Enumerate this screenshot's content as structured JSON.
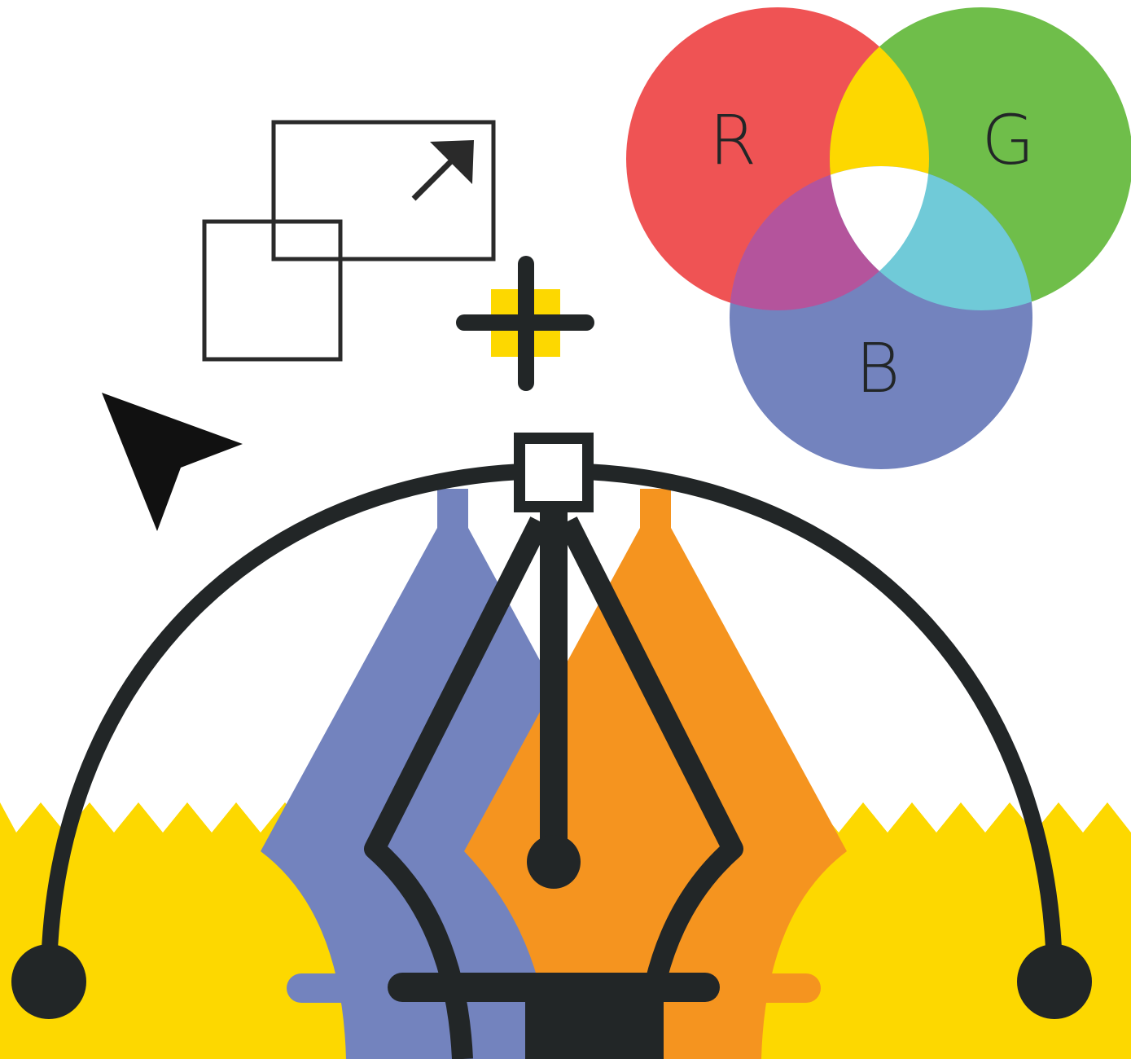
{
  "rgb_labels": [
    "R",
    "G",
    "B"
  ]
}
